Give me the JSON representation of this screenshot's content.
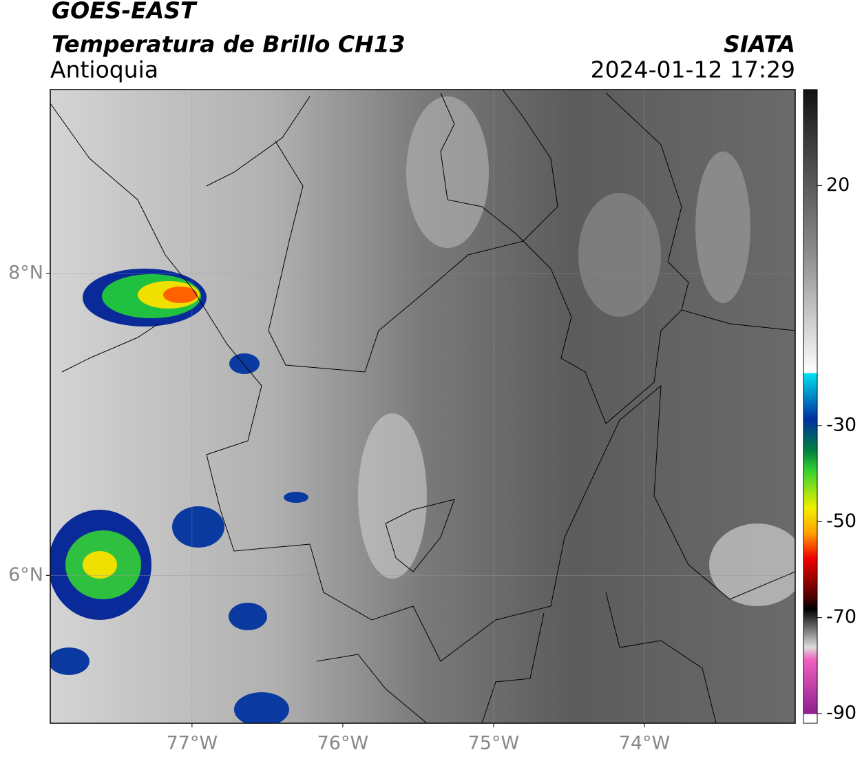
{
  "header": {
    "title": "GOES-EAST",
    "subtitle": "Temperatura de Brillo CH13",
    "region": "Antioquia",
    "source": "SIATA",
    "timestamp": "2024-01-12 17:29"
  },
  "map": {
    "xlim": [
      -77.94,
      -73.0
    ],
    "ylim": [
      5.02,
      9.22
    ],
    "xticks": [
      {
        "value": -77,
        "label": "77°W"
      },
      {
        "value": -76,
        "label": "76°W"
      },
      {
        "value": -75,
        "label": "75°W"
      },
      {
        "value": -74,
        "label": "74°W"
      }
    ],
    "yticks": [
      {
        "value": 8,
        "label": "8°N"
      },
      {
        "value": 6,
        "label": "6°N"
      }
    ],
    "grid": true
  },
  "colorbar": {
    "lim": [
      -92,
      40
    ],
    "ticks": [
      20,
      -30,
      -50,
      -70,
      -90
    ]
  }
}
